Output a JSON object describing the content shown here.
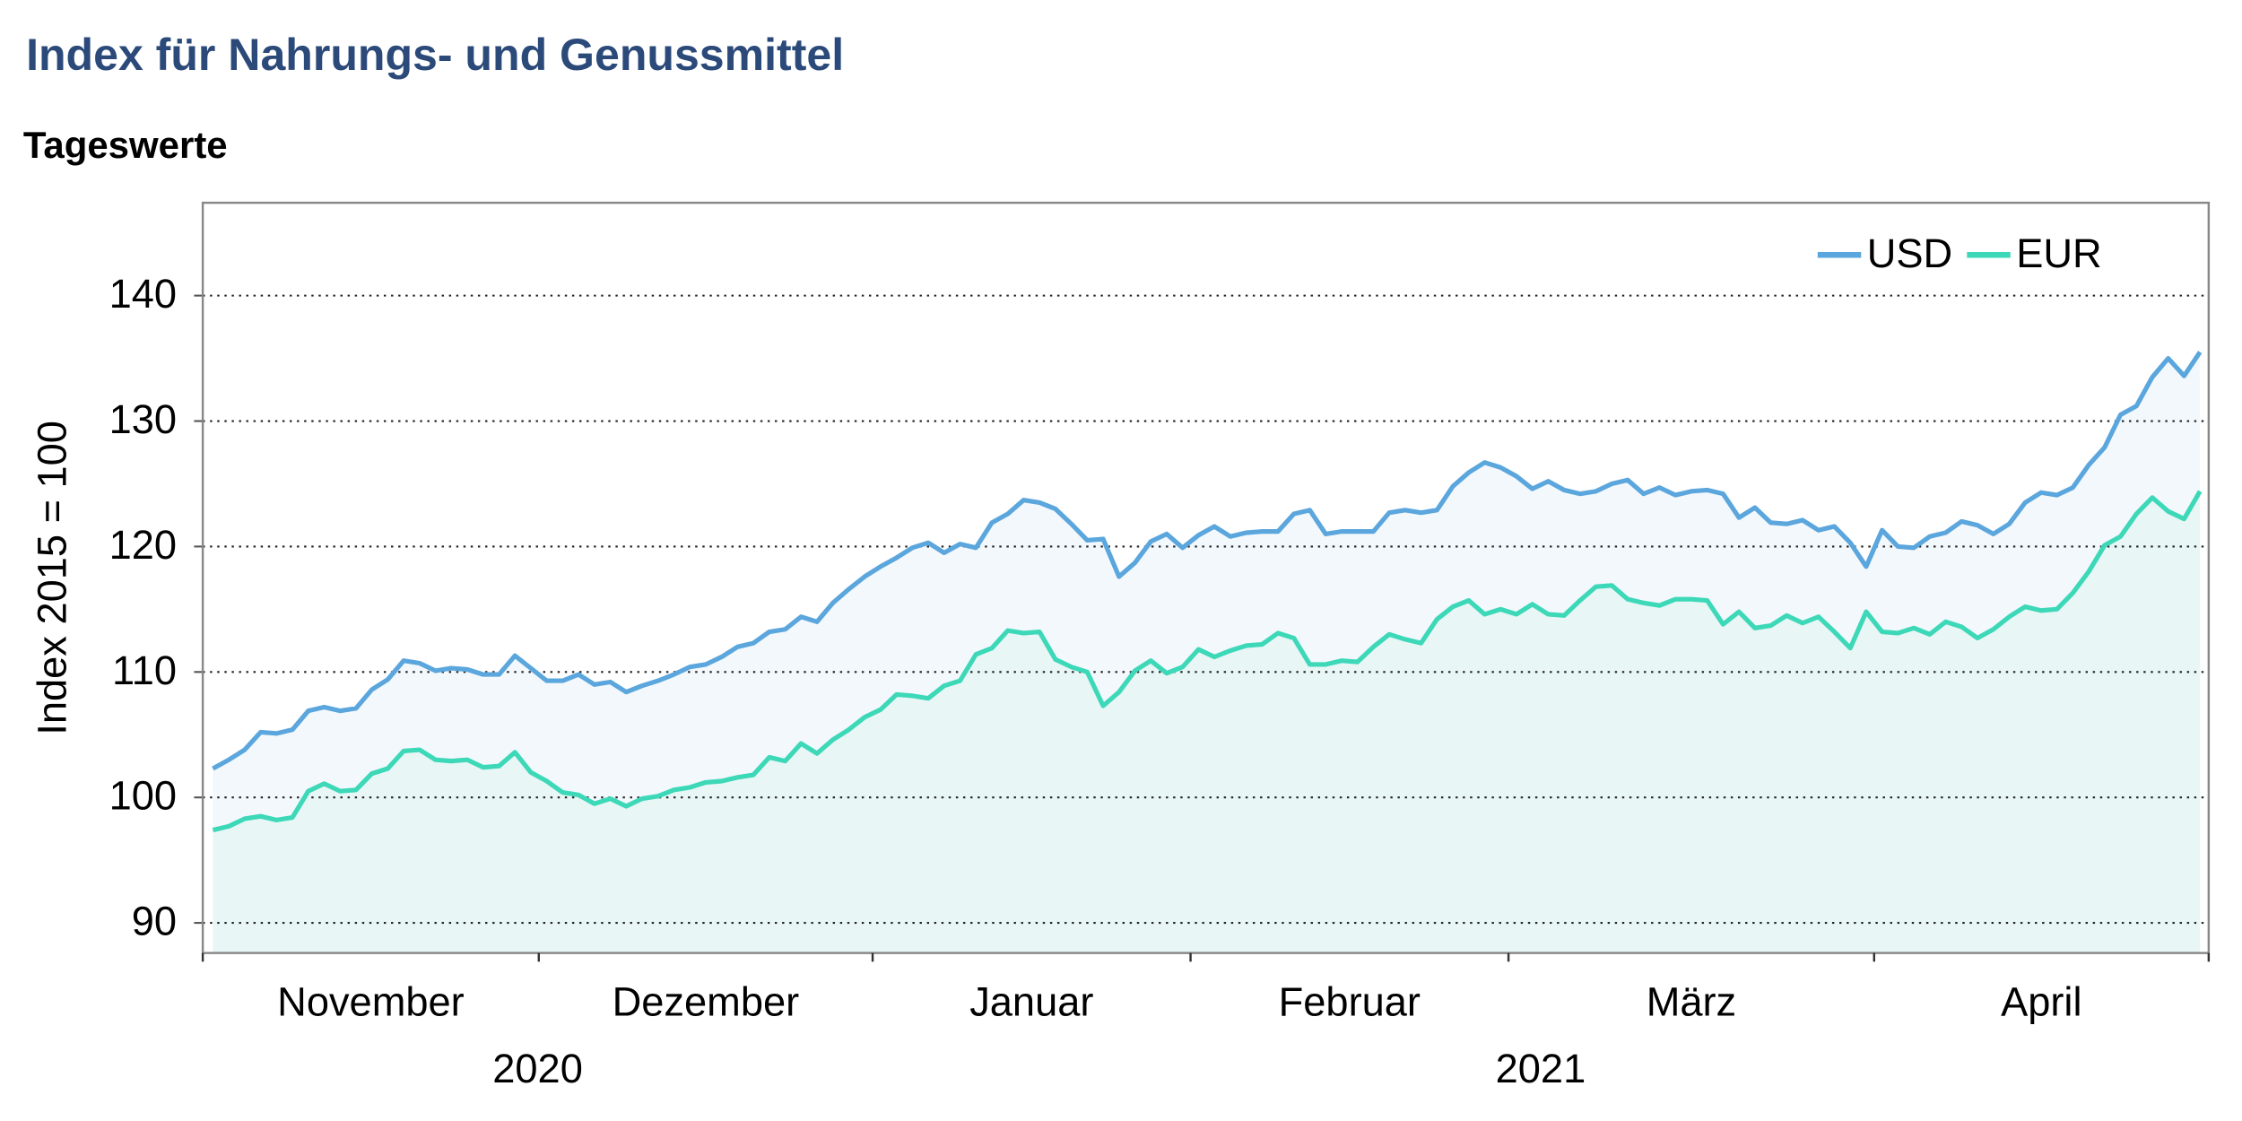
{
  "chart_data": {
    "type": "line",
    "title": "Index für Nahrungs- und Genussmittel",
    "subtitle": "Tageswerte",
    "ylabel": "Index 2015 = 100",
    "ylim": [
      87.6,
      147.4
    ],
    "yticks": [
      90,
      100,
      110,
      120,
      130,
      140
    ],
    "grid": true,
    "legend": "upper right",
    "categories": [
      "November",
      null,
      null,
      null,
      null,
      null,
      null,
      null,
      null,
      null,
      null,
      null,
      null,
      null,
      null,
      null,
      null,
      null,
      null,
      null,
      null,
      "Dezember",
      null,
      null,
      null,
      null,
      null,
      null,
      null,
      null,
      null,
      null,
      null,
      null,
      null,
      null,
      null,
      null,
      null,
      null,
      null,
      null,
      "Januar",
      null,
      null,
      null,
      null,
      null,
      null,
      null,
      null,
      null,
      null,
      null,
      null,
      null,
      null,
      null,
      null,
      null,
      null,
      null,
      "Februar",
      null,
      null,
      null,
      null,
      null,
      null,
      null,
      null,
      null,
      null,
      null,
      null,
      null,
      null,
      null,
      null,
      null,
      null,
      null,
      "März",
      null,
      null,
      null,
      null,
      null,
      null,
      null,
      null,
      null,
      null,
      null,
      null,
      null,
      null,
      null,
      null,
      null,
      null,
      null,
      null,
      null,
      null,
      "April",
      null,
      null,
      null,
      null,
      null,
      null,
      null,
      null,
      null,
      null,
      null,
      null,
      null,
      null,
      null,
      null,
      null,
      null,
      null,
      null
    ],
    "years": [
      {
        "label": "2020",
        "months": 2
      },
      {
        "label": "2021",
        "months": 4
      }
    ],
    "series": [
      {
        "name": "USD",
        "color": "#5aa6dd",
        "fill": "#f3f8fc",
        "values": [
          102.3,
          103.0,
          103.8,
          105.2,
          105.1,
          105.4,
          106.9,
          107.2,
          106.9,
          107.1,
          108.6,
          109.4,
          110.9,
          110.7,
          110.1,
          110.3,
          110.2,
          109.8,
          109.8,
          111.3,
          110.3,
          109.3,
          109.3,
          109.8,
          109.0,
          109.2,
          108.4,
          108.9,
          109.3,
          109.8,
          110.4,
          110.6,
          111.2,
          112.0,
          112.3,
          113.2,
          113.4,
          114.4,
          114.0,
          115.5,
          116.6,
          117.6,
          118.4,
          119.1,
          119.9,
          120.3,
          119.5,
          120.2,
          119.9,
          121.9,
          122.6,
          123.7,
          123.5,
          123.0,
          121.8,
          120.5,
          120.6,
          117.6,
          118.7,
          120.4,
          121.0,
          119.9,
          120.9,
          121.6,
          120.8,
          121.1,
          121.2,
          121.2,
          122.6,
          122.9,
          121.0,
          121.2,
          121.2,
          121.2,
          122.7,
          122.9,
          122.7,
          122.9,
          124.8,
          125.9,
          126.7,
          126.3,
          125.6,
          124.6,
          125.2,
          124.5,
          124.2,
          124.4,
          125.0,
          125.3,
          124.2,
          124.7,
          124.1,
          124.4,
          124.5,
          124.2,
          122.3,
          123.1,
          121.9,
          121.8,
          122.1,
          121.3,
          121.6,
          120.3,
          118.4,
          121.3,
          120.0,
          119.9,
          120.8,
          121.1,
          122.0,
          121.7,
          121.0,
          121.8,
          123.5,
          124.3,
          124.1,
          124.7,
          126.5,
          127.9,
          130.5,
          131.2,
          133.5,
          135.0,
          133.6,
          135.5
        ]
      },
      {
        "name": "EUR",
        "color": "#3cd8b8",
        "fill": "#e8f6f5",
        "values": [
          97.4,
          97.7,
          98.3,
          98.5,
          98.2,
          98.4,
          100.5,
          101.1,
          100.5,
          100.6,
          101.9,
          102.3,
          103.7,
          103.8,
          103.0,
          102.9,
          103.0,
          102.4,
          102.5,
          103.6,
          102.0,
          101.3,
          100.4,
          100.2,
          99.5,
          99.9,
          99.3,
          99.9,
          100.1,
          100.6,
          100.8,
          101.2,
          101.3,
          101.6,
          101.8,
          103.2,
          102.9,
          104.3,
          103.5,
          104.6,
          105.4,
          106.4,
          107.0,
          108.2,
          108.1,
          107.9,
          108.9,
          109.3,
          111.4,
          111.9,
          113.3,
          113.1,
          113.2,
          111.0,
          110.4,
          110.0,
          107.3,
          108.4,
          110.1,
          110.9,
          109.9,
          110.4,
          111.8,
          111.2,
          111.7,
          112.1,
          112.2,
          113.1,
          112.7,
          110.6,
          110.6,
          110.9,
          110.8,
          112.0,
          113.0,
          112.6,
          112.3,
          114.2,
          115.2,
          115.7,
          114.6,
          115.0,
          114.6,
          115.4,
          114.6,
          114.5,
          115.7,
          116.8,
          116.9,
          115.8,
          115.5,
          115.3,
          115.8,
          115.8,
          115.7,
          113.8,
          114.8,
          113.5,
          113.7,
          114.5,
          113.9,
          114.4,
          113.2,
          111.9,
          114.8,
          113.2,
          113.1,
          113.5,
          113.0,
          114.0,
          113.6,
          112.7,
          113.4,
          114.4,
          115.2,
          114.9,
          115.0,
          116.3,
          118.0,
          120.1,
          120.8,
          122.6,
          123.9,
          122.8,
          122.2,
          124.4
        ]
      }
    ]
  }
}
